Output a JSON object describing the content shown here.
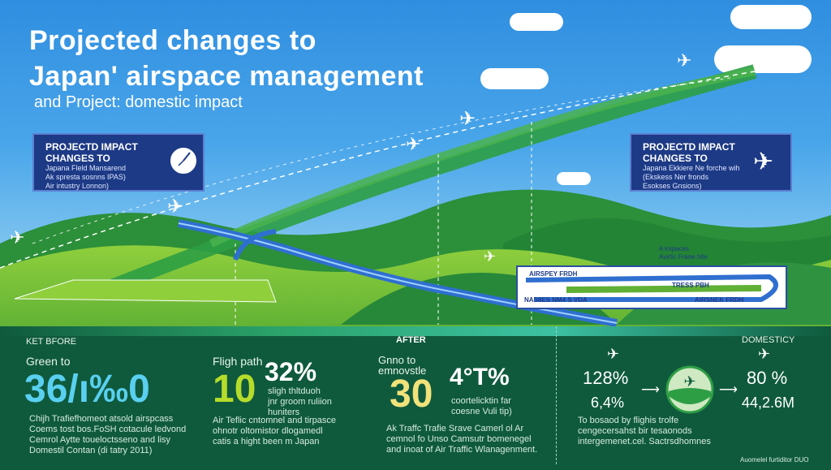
{
  "title": {
    "line1": "Projected changes to",
    "line2": "Japan' airspace management",
    "subtitle": "and Project: domestic impact"
  },
  "left_box": {
    "heading1": "PROJECTD IMPACT",
    "heading2": "CHANGES TO",
    "line1": "Japana Fleld Mansarend",
    "line2": "Ak spresta sosnns IPAS)",
    "line3": "Air intustry Lonnon)"
  },
  "right_box": {
    "heading1": "PROJECTD IMPACT",
    "heading2": "CHANGES TO",
    "line1": "Japana Ekkiere Ne forche wih",
    "line2": "(Ekskess Ner fronds",
    "line3": "Esokses Gnsions)"
  },
  "map_labels": {
    "airspace1": "A irspaces",
    "airspace2": "Avirtic Frane hite",
    "route1": "AIRSPEY FRDH",
    "route2": "TRESS PBH",
    "route3": "AIRSNEK FRDH",
    "route4": "NAS8ES NM4 S VDA"
  },
  "bottom": {
    "ket_before": "KET BFORE",
    "after": "AFTER",
    "domesticy": "DOMESTICY",
    "col1": {
      "label": "Green to",
      "big": "36/ı‰0",
      "text1": "Chijh Trafiefhomeot atsold airspcass",
      "text2": "Coems tost bos.FoSH cotacule ledvond",
      "text3": "Cemrol Aytte toueloctsseno and lisy",
      "text4": "Domestil Contan (di tatry 2011)"
    },
    "col2": {
      "label": "Fligh path",
      "big1": "10",
      "big2": "32%",
      "desc1": "sligh thltduoh",
      "desc2": "jnr groom ruliion",
      "desc3": "huniters",
      "text1": "Air Teflic cntomnel and tirpasce",
      "text2": "ohnotr oltomistor dlogamedl",
      "text3": "catis a hight been m Japan"
    },
    "col3": {
      "label1": "Gnno to",
      "label2": "emnovstle",
      "big1": "30",
      "big2": "4°T%",
      "desc1": "coortelicktin far",
      "desc2": "coesne Vuli tip)",
      "text1": "Ak Traffc Trafie Srave Camerl ol Ar",
      "text2": "cemnol fo Unso Camsutr bomenegel",
      "text3": "and inoat of Air Traffic Wlanagenment."
    },
    "col4": {
      "v1": "128%",
      "v2": "6,4%",
      "v3": "80 %",
      "v4": "44,2.6M",
      "text1": "To bosaod by flighis trolfe",
      "text2": "cengecersahst bir tesaonods",
      "text3": "intergemenet.cel. Sactrsdhomnes"
    },
    "footer": "Auomelel furtiditor DUO"
  },
  "colors": {
    "sky": "#3a9be5",
    "green_dark": "#0f5a3d",
    "accent_blue": "#4ec3f0",
    "accent_green": "#a9d62e",
    "box_navy": "#1d3a86"
  }
}
